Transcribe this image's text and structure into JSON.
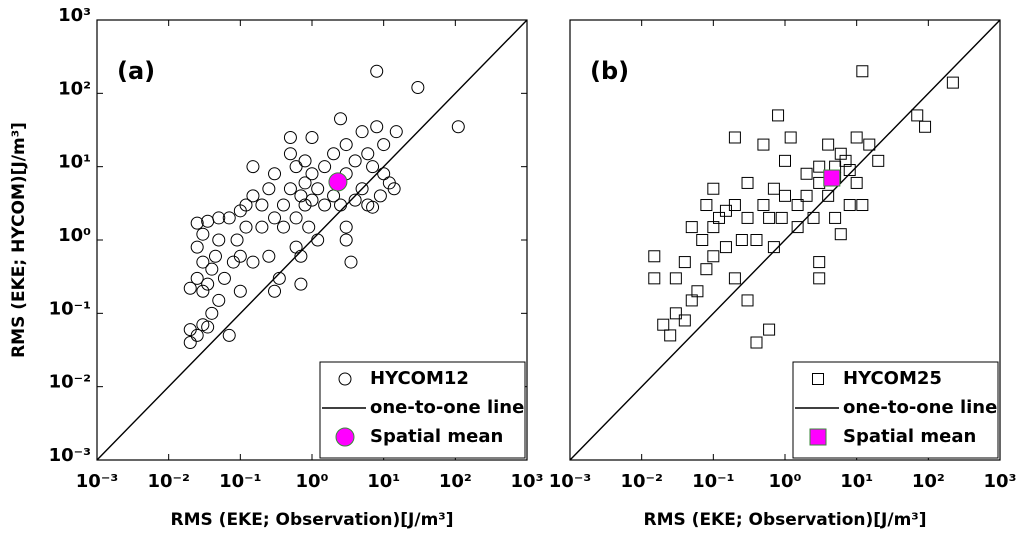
{
  "chart_data": [
    {
      "type": "scatter",
      "panel_label": "(a)",
      "xlabel": "RMS (EKE; Observation)[J/m³]",
      "ylabel": "RMS (EKE; HYCOM)[J/m³]",
      "xscale": "log",
      "yscale": "log",
      "xlim": [
        0.001,
        1000
      ],
      "ylim": [
        0.001,
        1000
      ],
      "xticks": [
        {
          "value": 0.001,
          "label": "10⁻³"
        },
        {
          "value": 0.01,
          "label": "10⁻²"
        },
        {
          "value": 0.1,
          "label": "10⁻¹"
        },
        {
          "value": 1,
          "label": "10⁰"
        },
        {
          "value": 10,
          "label": "10¹"
        },
        {
          "value": 100,
          "label": "10²"
        },
        {
          "value": 1000,
          "label": "10³"
        }
      ],
      "yticks": [
        {
          "value": 0.001,
          "label": "10⁻³"
        },
        {
          "value": 0.01,
          "label": "10⁻²"
        },
        {
          "value": 0.1,
          "label": "10⁻¹"
        },
        {
          "value": 1,
          "label": "10⁰"
        },
        {
          "value": 10,
          "label": "10¹"
        },
        {
          "value": 100,
          "label": "10²"
        },
        {
          "value": 1000,
          "label": "10³"
        }
      ],
      "legend": "lower right",
      "series": [
        {
          "name": "HYCOM12",
          "marker": "circle",
          "color": "#000000",
          "x": [
            0.02,
            0.02,
            0.025,
            0.03,
            0.035,
            0.04,
            0.05,
            0.02,
            0.025,
            0.03,
            0.035,
            0.03,
            0.025,
            0.03,
            0.025,
            0.035,
            0.04,
            0.045,
            0.05,
            0.05,
            0.06,
            0.07,
            0.07,
            0.08,
            0.09,
            0.1,
            0.1,
            0.1,
            0.12,
            0.12,
            0.15,
            0.15,
            0.15,
            0.2,
            0.2,
            0.25,
            0.25,
            0.3,
            0.3,
            0.3,
            0.35,
            0.4,
            0.4,
            0.5,
            0.5,
            0.5,
            0.6,
            0.6,
            0.6,
            0.7,
            0.7,
            0.7,
            0.8,
            0.8,
            0.8,
            0.9,
            1,
            1,
            1,
            1.2,
            1.2,
            1.5,
            1.5,
            2,
            2,
            2.5,
            2.5,
            3,
            3,
            3,
            3,
            3.5,
            4,
            4,
            5,
            5,
            6,
            6,
            7,
            7,
            8,
            8,
            9,
            10,
            10,
            12,
            14,
            15,
            30,
            110
          ],
          "values": [
            0.04,
            0.06,
            0.05,
            0.07,
            0.065,
            0.1,
            0.15,
            0.22,
            0.3,
            0.2,
            0.25,
            0.5,
            0.8,
            1.2,
            1.7,
            1.8,
            0.4,
            0.6,
            1.0,
            2,
            0.3,
            0.05,
            2,
            0.5,
            1,
            0.2,
            0.6,
            2.5,
            3,
            1.5,
            0.5,
            4,
            10,
            3,
            1.5,
            0.6,
            5,
            0.2,
            2,
            8,
            0.3,
            3,
            1.5,
            5,
            15,
            25,
            2,
            0.8,
            10,
            4,
            0.25,
            0.6,
            3,
            6,
            12,
            1.5,
            3.5,
            8,
            25,
            5,
            1,
            3,
            10,
            15,
            4,
            45,
            3,
            20,
            8,
            1,
            1.5,
            0.5,
            12,
            3.5,
            5,
            30,
            3,
            15,
            10,
            2.8,
            35,
            200,
            4,
            8,
            20,
            6,
            5,
            30,
            120,
            35
          ]
        },
        {
          "name": "one-to-one line",
          "type": "line",
          "color": "#000000",
          "x": [
            0.001,
            1000
          ],
          "values": [
            0.001,
            1000
          ]
        },
        {
          "name": "Spatial mean",
          "marker": "circle",
          "color": "#ff00ff",
          "x": [
            2.3
          ],
          "values": [
            6.2
          ]
        }
      ]
    },
    {
      "type": "scatter",
      "panel_label": "(b)",
      "xlabel": "RMS (EKE; Observation)[J/m³]",
      "xscale": "log",
      "yscale": "log",
      "xlim": [
        0.001,
        1000
      ],
      "ylim": [
        0.001,
        1000
      ],
      "xticks": [
        {
          "value": 0.001,
          "label": "10⁻³"
        },
        {
          "value": 0.01,
          "label": "10⁻²"
        },
        {
          "value": 0.1,
          "label": "10⁻¹"
        },
        {
          "value": 1,
          "label": "10⁰"
        },
        {
          "value": 10,
          "label": "10¹"
        },
        {
          "value": 100,
          "label": "10²"
        },
        {
          "value": 1000,
          "label": "10³"
        }
      ],
      "legend": "lower right",
      "series": [
        {
          "name": "HYCOM25",
          "marker": "square",
          "color": "#000000",
          "x": [
            0.015,
            0.015,
            0.02,
            0.025,
            0.03,
            0.03,
            0.04,
            0.04,
            0.05,
            0.05,
            0.06,
            0.07,
            0.08,
            0.08,
            0.1,
            0.1,
            0.1,
            0.12,
            0.15,
            0.15,
            0.2,
            0.2,
            0.2,
            0.25,
            0.3,
            0.3,
            0.3,
            0.4,
            0.4,
            0.5,
            0.5,
            0.6,
            0.6,
            0.7,
            0.7,
            0.8,
            0.9,
            1,
            1,
            1.2,
            1.5,
            1.5,
            2,
            2,
            2.5,
            3,
            3,
            3,
            3,
            4,
            4,
            5,
            5,
            6,
            7,
            8,
            10,
            10,
            12,
            12,
            15,
            20,
            70,
            90,
            220,
            5,
            6,
            8
          ],
          "values": [
            0.6,
            0.3,
            0.07,
            0.05,
            0.1,
            0.3,
            0.08,
            0.5,
            1.5,
            0.15,
            0.2,
            1,
            0.4,
            3,
            0.6,
            1.5,
            5,
            2,
            0.8,
            2.5,
            25,
            3,
            0.3,
            1,
            0.15,
            2,
            6,
            0.04,
            1,
            3,
            20,
            0.06,
            2,
            0.8,
            5,
            50,
            2,
            4,
            12,
            25,
            3,
            1.5,
            8,
            4,
            2,
            0.3,
            0.5,
            6,
            10,
            4,
            20,
            10,
            7,
            15,
            12,
            9,
            6,
            25,
            3,
            200,
            20,
            12,
            50,
            35,
            140,
            2,
            1.2,
            3
          ]
        },
        {
          "name": "one-to-one line",
          "type": "line",
          "color": "#000000",
          "x": [
            0.001,
            1000
          ],
          "values": [
            0.001,
            1000
          ]
        },
        {
          "name": "Spatial mean",
          "marker": "square",
          "color": "#ff00ff",
          "x": [
            4.5
          ],
          "values": [
            7
          ]
        }
      ]
    }
  ]
}
